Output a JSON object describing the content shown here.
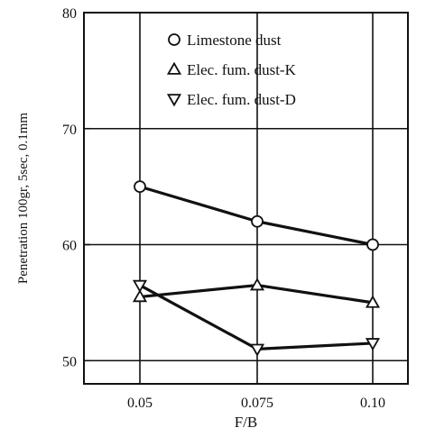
{
  "chart_data": {
    "type": "line",
    "xlabel": "F/B",
    "ylabel": "Penetration 100gr, 5sec, 0.1mm",
    "x": [
      0.05,
      0.075,
      0.1
    ],
    "x_tick_labels": [
      "0.05",
      "0.075",
      "0.10"
    ],
    "ylim": [
      48,
      80
    ],
    "y_ticks": [
      50,
      60,
      70,
      80
    ],
    "y_tick_labels": [
      "50",
      "60",
      "70",
      "80"
    ],
    "grid": true,
    "legend_position": "top-right",
    "series": [
      {
        "name": "Limestone dust",
        "marker": "circle",
        "values": [
          65,
          62,
          60
        ]
      },
      {
        "name": "Elec. fum. dust-K",
        "marker": "triangle-up",
        "values": [
          55.5,
          56.5,
          55
        ]
      },
      {
        "name": "Elec. fum. dust-D",
        "marker": "triangle-down",
        "values": [
          56.5,
          51,
          51.5
        ]
      }
    ],
    "colors": {
      "line": "#111111",
      "background": "#ffffff"
    }
  }
}
